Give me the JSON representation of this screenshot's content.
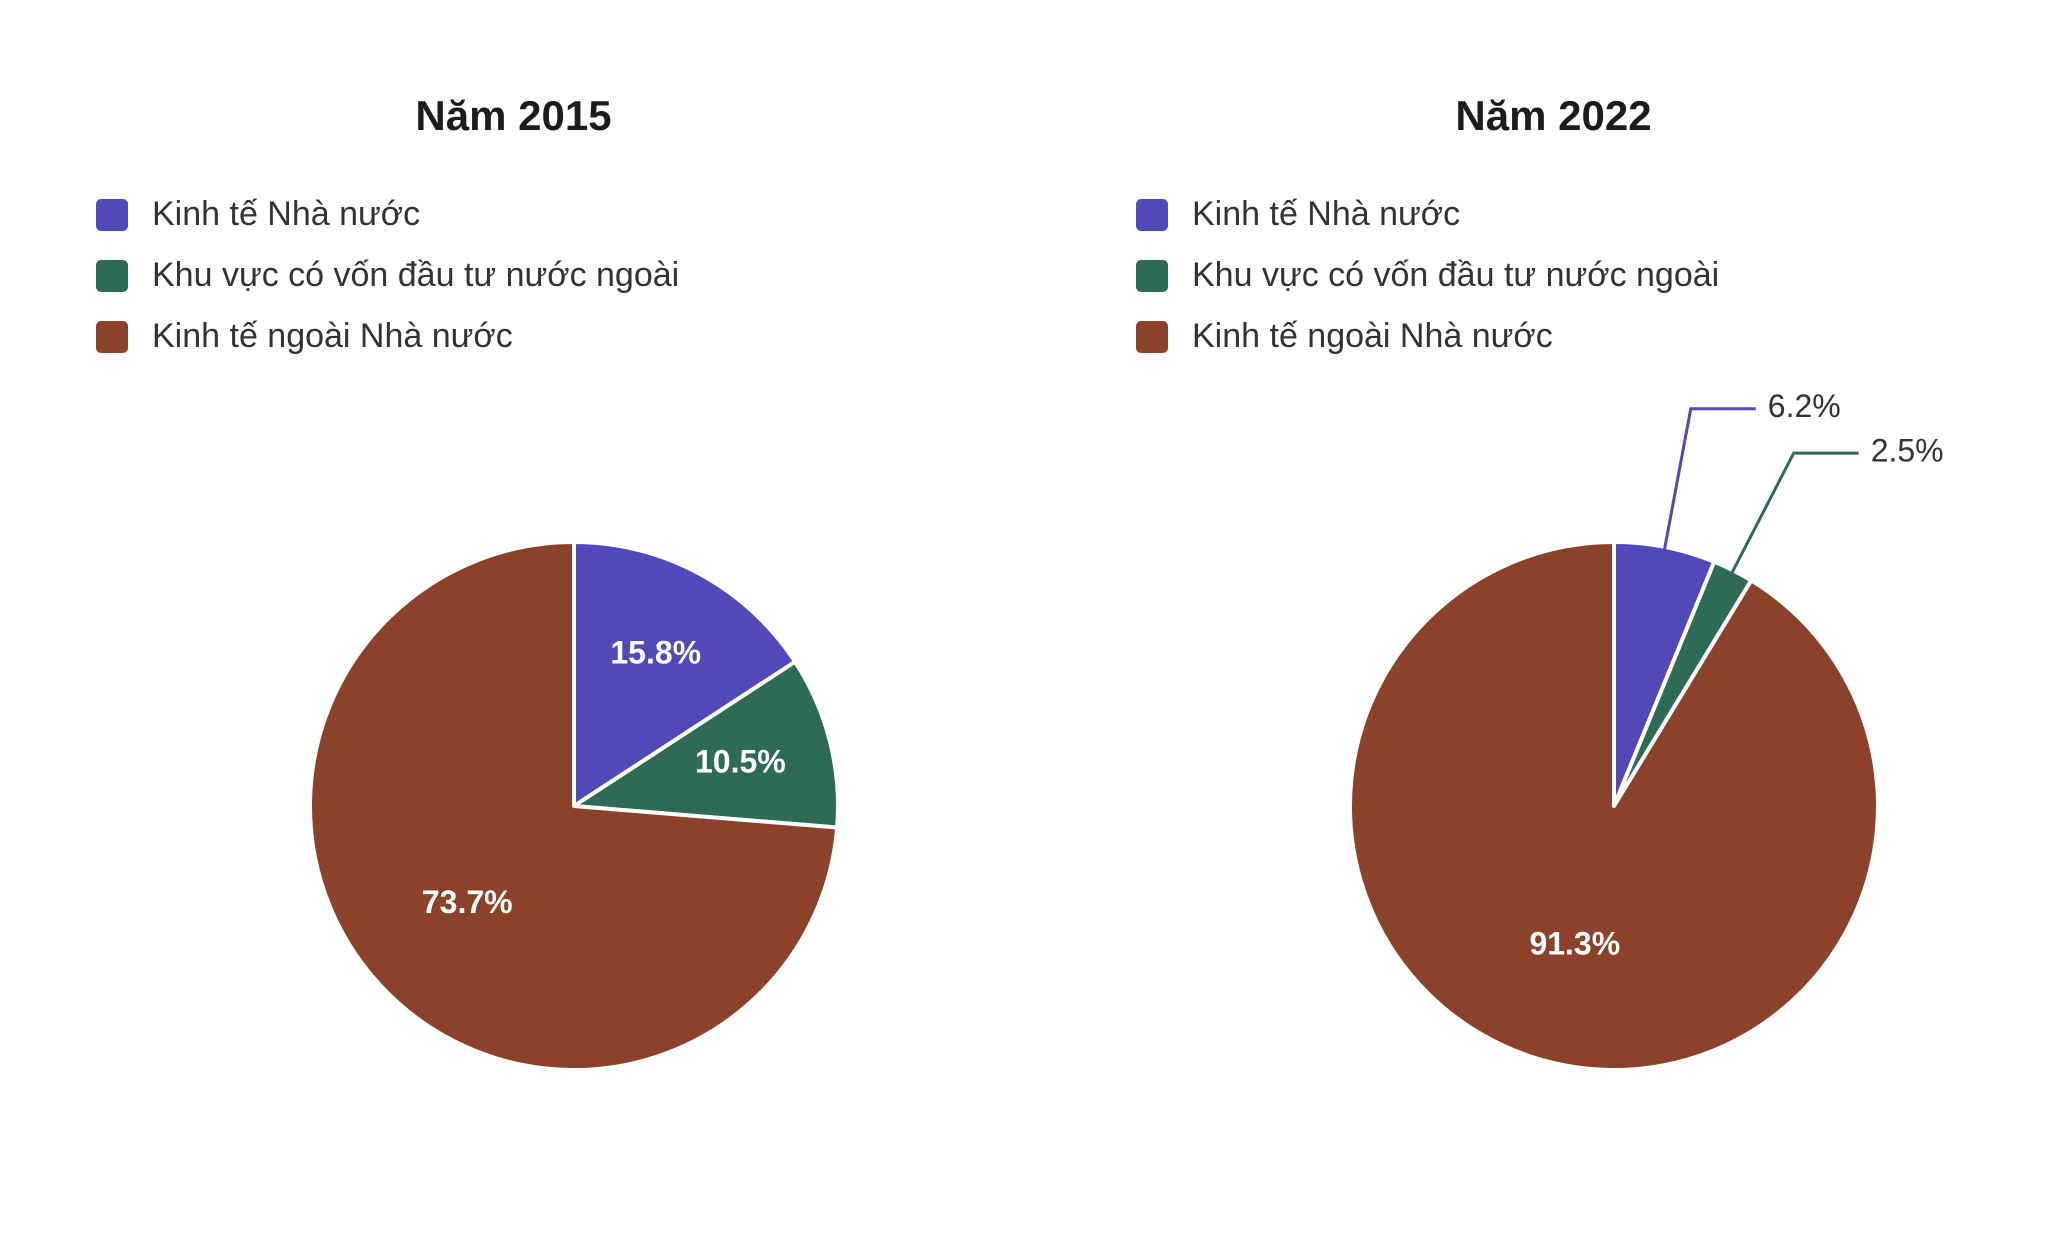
{
  "chart_data": [
    {
      "type": "pie",
      "title": "Năm 2015",
      "categories": [
        "Kinh tế Nhà nước",
        "Khu vực có vốn đầu tư nước ngoài",
        "Kinh tế ngoài Nhà nước"
      ],
      "values": [
        15.8,
        10.5,
        73.7
      ],
      "value_labels": [
        "15.8%",
        "10.5%",
        "73.7%"
      ],
      "colors": [
        "#5249b8",
        "#2e6b55",
        "#8c412a"
      ],
      "legend_position": "top-left"
    },
    {
      "type": "pie",
      "title": "Năm 2022",
      "categories": [
        "Kinh tế Nhà nước",
        "Khu vực có vốn đầu tư nước ngoài",
        "Kinh tế ngoài Nhà nước"
      ],
      "values": [
        6.2,
        2.5,
        91.3
      ],
      "value_labels": [
        "6.2%",
        "2.5%",
        "91.3%"
      ],
      "colors": [
        "#5249b8",
        "#2e6b55",
        "#8c412a"
      ],
      "legend_position": "top-left"
    }
  ]
}
